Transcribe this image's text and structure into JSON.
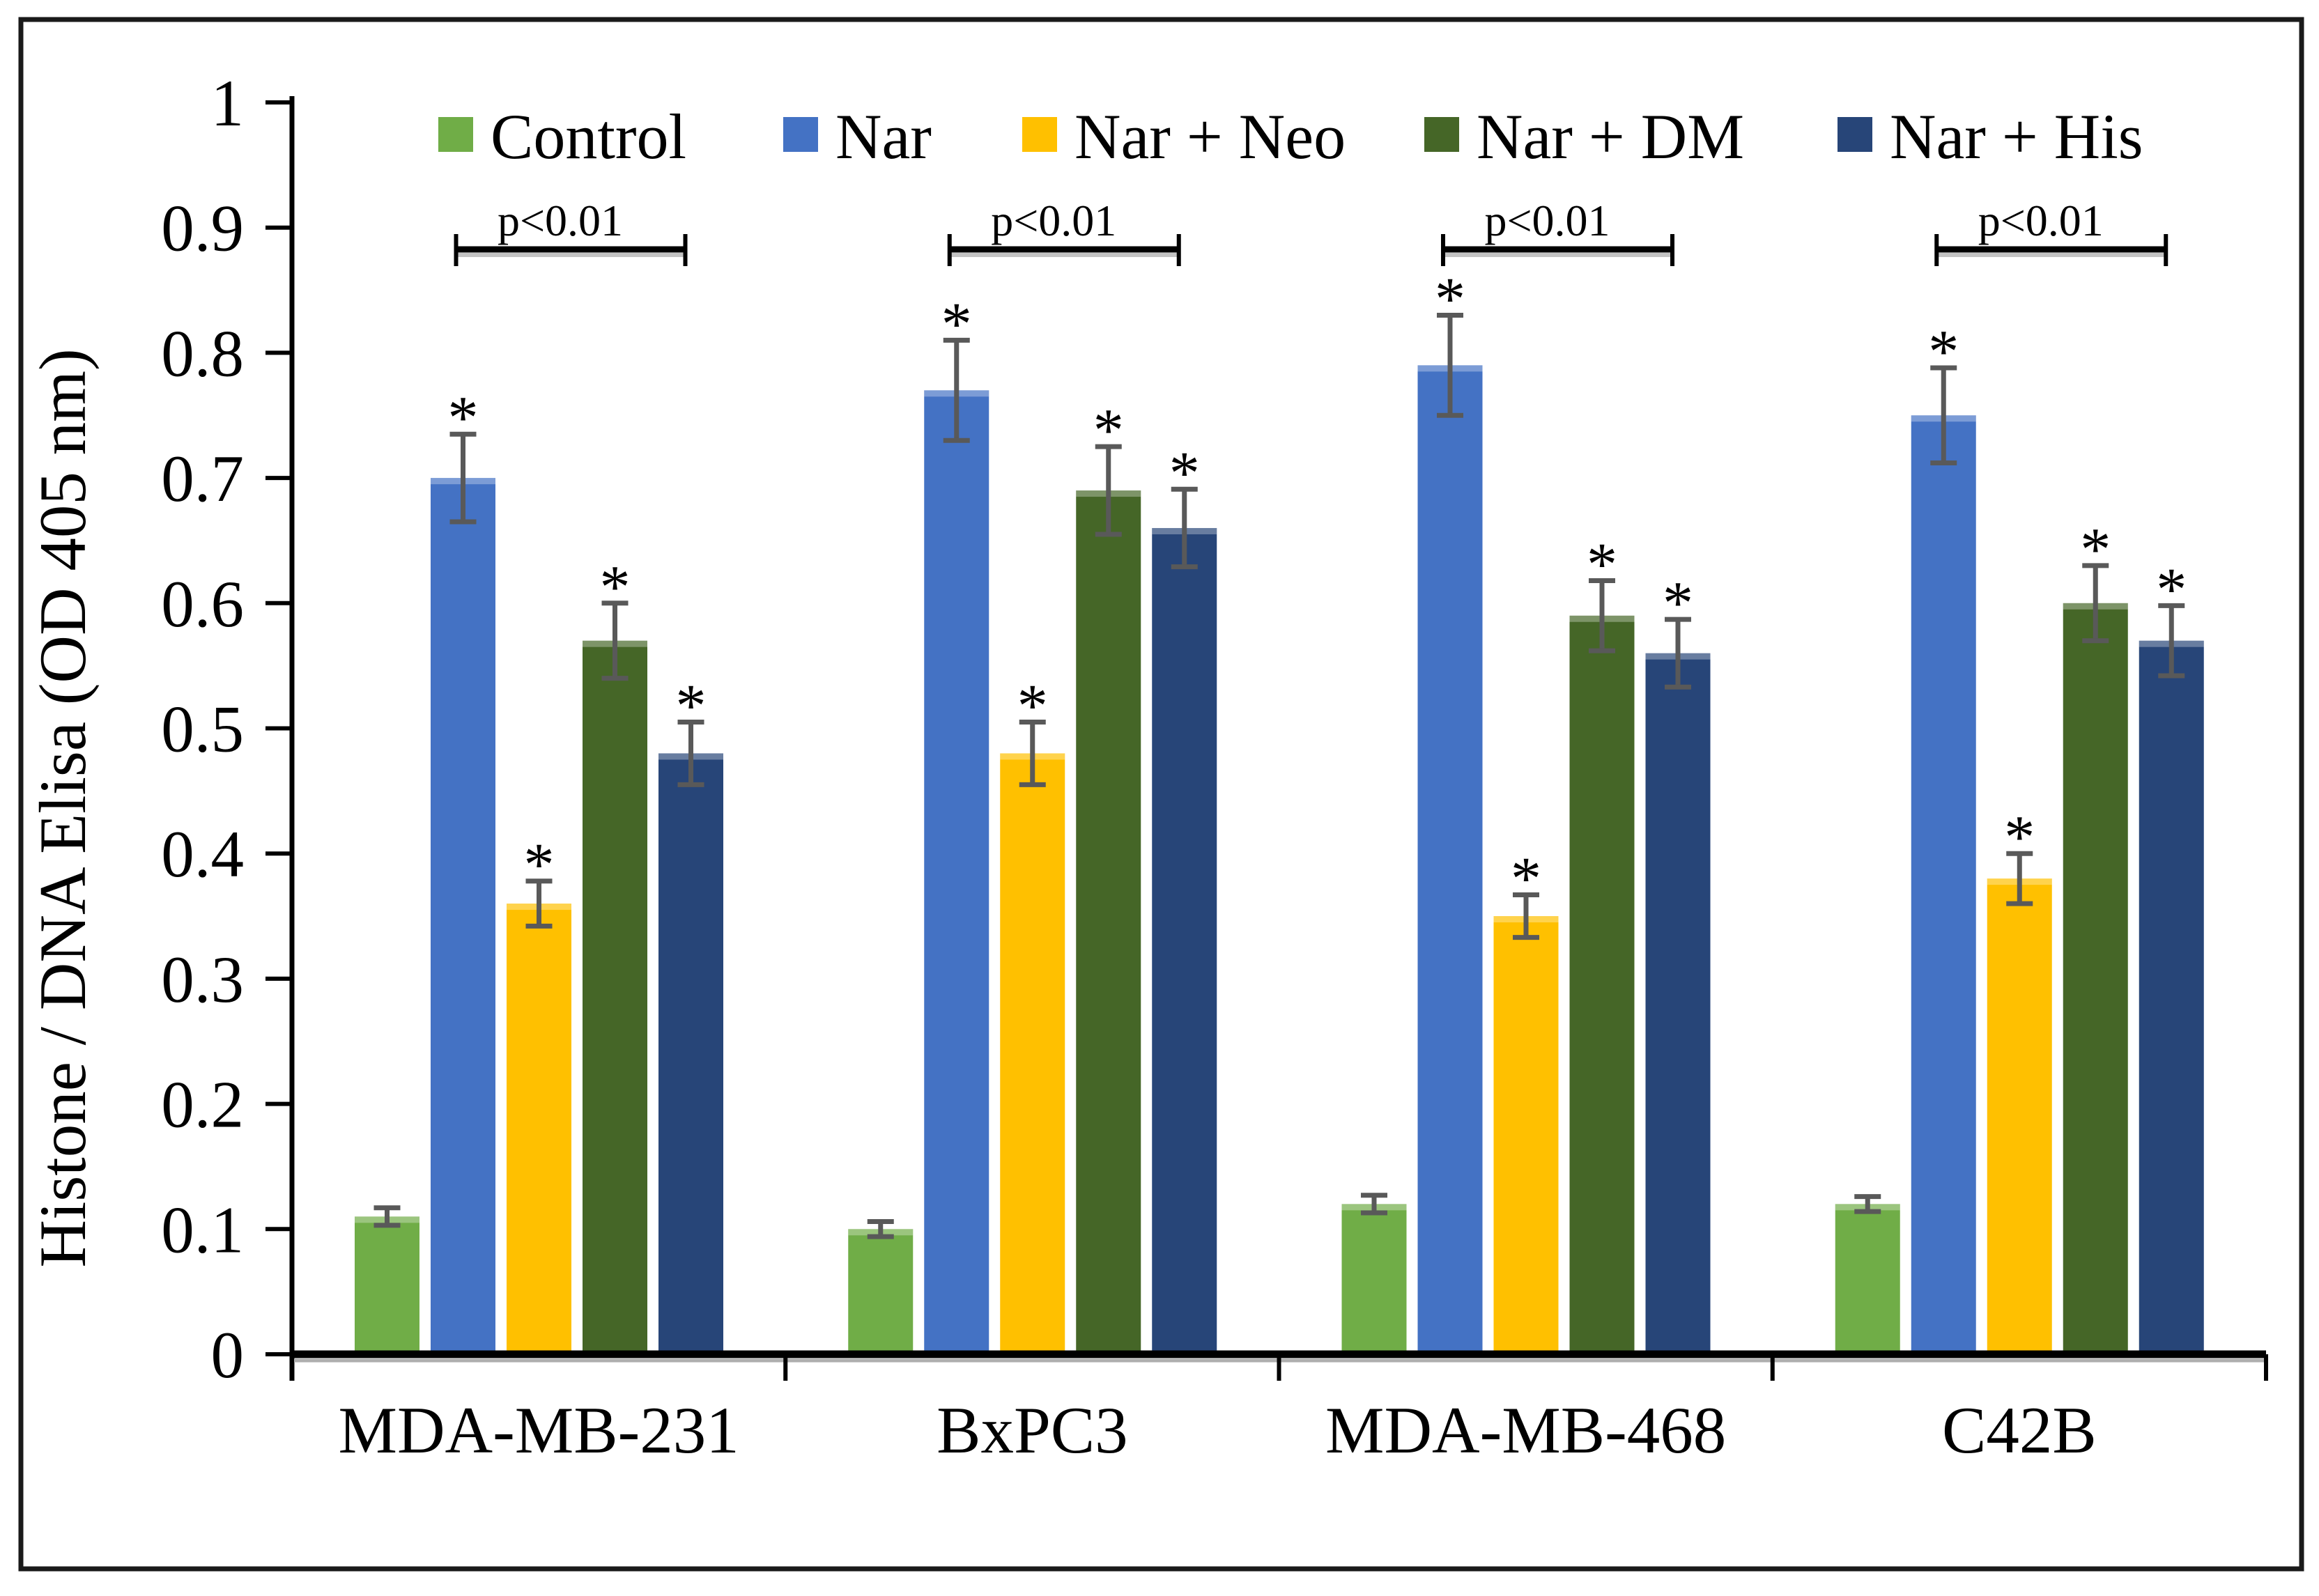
{
  "figure": {
    "description": "Grouped bar chart of Histone/DNA ELISA results in four cancer cell lines under five treatments"
  },
  "chart_data": {
    "type": "bar",
    "title": "",
    "xlabel": "",
    "ylabel": "Histone / DNA Elisa (OD 405 nm)",
    "ylim": [
      0,
      1
    ],
    "yticks": [
      0,
      0.1,
      0.2,
      0.3,
      0.4,
      0.5,
      0.6,
      0.7,
      0.8,
      0.9,
      1
    ],
    "ytick_labels": [
      "0",
      "0.1",
      "0.2",
      "0.3",
      "0.4",
      "0.5",
      "0.6",
      "0.7",
      "0.8",
      "0.9",
      "1"
    ],
    "grid": false,
    "legend_position": "top",
    "categories": [
      "MDA-MB-231",
      "BxPC3",
      "MDA-MB-468",
      "C42B"
    ],
    "series": [
      {
        "name": "Control",
        "color": "#70AD47",
        "values": [
          0.11,
          0.1,
          0.12,
          0.12
        ],
        "errors": [
          0.007,
          0.006,
          0.007,
          0.006
        ],
        "significant": false
      },
      {
        "name": "Nar",
        "color": "#4472C4",
        "values": [
          0.7,
          0.77,
          0.79,
          0.75
        ],
        "errors": [
          0.035,
          0.04,
          0.04,
          0.038
        ],
        "significant": true
      },
      {
        "name": "Nar + Neo",
        "color": "#FFC000",
        "values": [
          0.36,
          0.48,
          0.35,
          0.38
        ],
        "errors": [
          0.018,
          0.025,
          0.017,
          0.02
        ],
        "significant": true
      },
      {
        "name": "Nar + DM",
        "color": "#456627",
        "values": [
          0.57,
          0.69,
          0.59,
          0.6
        ],
        "errors": [
          0.03,
          0.035,
          0.028,
          0.03
        ],
        "significant": true
      },
      {
        "name": "Nar + His",
        "color": "#274578",
        "values": [
          0.48,
          0.66,
          0.56,
          0.57
        ],
        "errors": [
          0.025,
          0.031,
          0.027,
          0.028
        ],
        "significant": true
      }
    ],
    "significance_marker": "*",
    "brackets": [
      {
        "category": "MDA-MB-231",
        "label": "p<0.01",
        "from_series": 1,
        "to_series": 4
      },
      {
        "category": "BxPC3",
        "label": "p<0.01",
        "from_series": 1,
        "to_series": 4
      },
      {
        "category": "MDA-MB-468",
        "label": "p<0.01",
        "from_series": 1,
        "to_series": 4
      },
      {
        "category": "C42B",
        "label": "p<0.01",
        "from_series": 1,
        "to_series": 4
      }
    ],
    "colors": {
      "error_bar": "#595959",
      "axis": "#000000",
      "axis_shadow": "#aeaeae",
      "bracket_shadow": "#c3c3c3",
      "frame": "#1a1a1a"
    }
  }
}
